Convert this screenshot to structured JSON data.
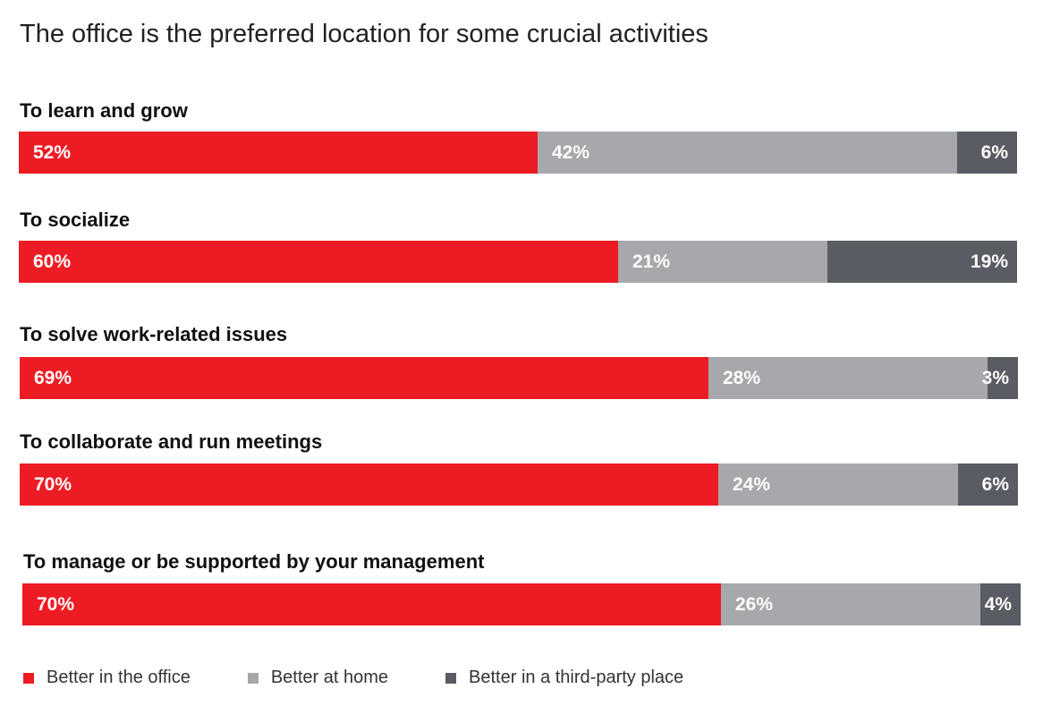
{
  "chart_data": {
    "type": "bar",
    "orientation": "horizontal",
    "stacked": true,
    "title": "The office is the preferred location for some crucial activities",
    "categories": [
      "To learn and grow",
      "To socialize",
      "To solve work-related issues",
      "To collaborate and run meetings",
      "To manage or be supported by your management"
    ],
    "series": [
      {
        "name": "Better in the office",
        "color": "#ED1C24",
        "values": [
          52,
          60,
          69,
          70,
          70
        ]
      },
      {
        "name": "Better at home",
        "color": "#A6A8AB",
        "values": [
          42,
          21,
          28,
          24,
          26
        ]
      },
      {
        "name": "Better in a third-party place",
        "color": "#5A5C63",
        "values": [
          6,
          19,
          3,
          6,
          4
        ]
      }
    ],
    "value_format": "percent",
    "xlim": [
      0,
      100
    ],
    "grid": false,
    "legend_position": "bottom-left"
  }
}
